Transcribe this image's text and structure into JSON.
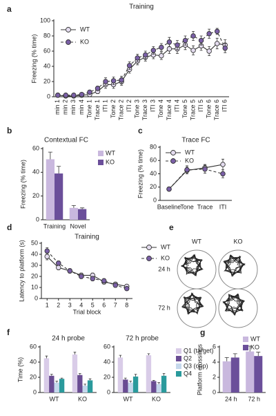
{
  "chart_data": [
    {
      "panel": "a",
      "type": "line",
      "title": "Training",
      "ylabel": "Freezing (% time)",
      "categories": [
        "min 1",
        "min 2",
        "min 3",
        "min 4",
        "Tone 1",
        "Trace 1",
        "ITI 1",
        "Tone 2",
        "Trace 2",
        "ITI 2",
        "Tone 3",
        "Trace 3",
        "ITI 3",
        "Tone 4",
        "Trace 4",
        "ITI 4",
        "Tone 5",
        "Trace 5",
        "ITI 5",
        "Tone 6",
        "Trace 6",
        "ITI 6"
      ],
      "ylim": [
        0,
        100
      ],
      "yticks": [
        0,
        20,
        40,
        60,
        80,
        100
      ],
      "series": [
        {
          "name": "WT",
          "color": "#e4dcef",
          "linestyle": "solid",
          "values": [
            2,
            1,
            1,
            2,
            3,
            7,
            16,
            16,
            20,
            36,
            47,
            52,
            55,
            54,
            63,
            63,
            68,
            61,
            67,
            60,
            70,
            68
          ],
          "errors": [
            1,
            1,
            1,
            1,
            2,
            3,
            5,
            5,
            5,
            5,
            5,
            5,
            5,
            5,
            6,
            6,
            6,
            6,
            6,
            6,
            7,
            7
          ]
        },
        {
          "name": "KO",
          "color": "#7a5fa6",
          "linestyle": "dashed",
          "values": [
            2,
            2,
            2,
            3,
            6,
            11,
            20,
            21,
            22,
            41,
            51,
            55,
            61,
            65,
            72,
            68,
            74,
            80,
            74,
            83,
            86,
            64
          ],
          "errors": [
            1,
            1,
            1,
            1,
            2,
            3,
            5,
            5,
            5,
            5,
            5,
            5,
            5,
            5,
            6,
            6,
            6,
            6,
            6,
            6,
            4,
            6
          ]
        }
      ]
    },
    {
      "panel": "b",
      "type": "bar",
      "title": "Contextual FC",
      "ylabel": "Freezing (% time)",
      "categories": [
        "Training",
        "Novel"
      ],
      "ylim": [
        0,
        60
      ],
      "yticks": [
        0,
        20,
        40,
        60
      ],
      "series": [
        {
          "name": "WT",
          "color": "#c9b8de",
          "values": [
            51,
            10
          ],
          "errors": [
            6,
            2
          ]
        },
        {
          "name": "KO",
          "color": "#6b4f9a",
          "values": [
            39,
            9
          ],
          "errors": [
            6,
            1
          ]
        }
      ]
    },
    {
      "panel": "c",
      "type": "line",
      "title": "Trace FC",
      "ylabel": "Freezing (% time)",
      "categories": [
        "Baseline",
        "Tone",
        "Trace",
        "ITI"
      ],
      "ylim": [
        0,
        80
      ],
      "yticks": [
        0,
        20,
        40,
        60,
        80
      ],
      "series": [
        {
          "name": "WT",
          "color": "#e4dcef",
          "linestyle": "solid",
          "values": [
            17,
            45,
            49,
            54
          ],
          "errors": [
            3,
            5,
            5,
            8
          ]
        },
        {
          "name": "KO",
          "color": "#7a5fa6",
          "linestyle": "dashed",
          "values": [
            17,
            46,
            47,
            40
          ],
          "errors": [
            3,
            6,
            6,
            6
          ]
        }
      ]
    },
    {
      "panel": "d",
      "type": "line",
      "title": "Training",
      "ylabel": "Latency to platform (s)",
      "xlabel": "Trial block",
      "x": [
        1,
        2,
        3,
        4,
        5,
        6,
        7,
        8
      ],
      "xlim": [
        0.5,
        8.5
      ],
      "xticks": [
        1,
        2,
        3,
        4,
        5,
        6,
        7,
        8
      ],
      "ylim": [
        0,
        50
      ],
      "yticks": [
        0,
        10,
        20,
        30,
        40,
        50
      ],
      "series": [
        {
          "name": "WT",
          "color": "#e4dcef",
          "linestyle": "solid",
          "values": [
            38,
            28,
            25,
            21,
            21,
            15,
            13,
            11
          ],
          "errors": [
            3,
            2,
            2,
            2,
            2,
            2,
            1,
            1
          ]
        },
        {
          "name": "KO",
          "color": "#7a5fa6",
          "linestyle": "dashed",
          "values": [
            43,
            32,
            25,
            20,
            18,
            16,
            12,
            9
          ],
          "errors": [
            3,
            2,
            2,
            2,
            2,
            2,
            1,
            1
          ]
        }
      ]
    },
    {
      "panel": "e",
      "type": "image",
      "columns": [
        "WT",
        "KO"
      ],
      "rows": [
        "24 h",
        "72 h"
      ]
    },
    {
      "panel": "f",
      "type": "bar",
      "title": "24 h probe",
      "ylabel": "Time (%)",
      "categories": [
        "WT",
        "KO"
      ],
      "ylim": [
        0,
        60
      ],
      "yticks": [
        0,
        20,
        40,
        60
      ],
      "series": [
        {
          "name": "Q1 (target)",
          "color": "#d9cce8",
          "values": [
            45,
            50
          ],
          "errors": [
            3,
            3
          ]
        },
        {
          "name": "Q2",
          "color": "#6a4c93",
          "values": [
            22,
            23
          ],
          "errors": [
            2,
            2
          ]
        },
        {
          "name": "Q3 (opp)",
          "color": "#c5d8ec",
          "values": [
            13,
            9
          ],
          "errors": [
            2,
            2
          ]
        },
        {
          "name": "Q4",
          "color": "#2a9a9c",
          "values": [
            18,
            16
          ],
          "errors": [
            1,
            2
          ]
        }
      ]
    },
    {
      "type": "bar",
      "title": "72 h probe",
      "categories": [
        "WT",
        "KO"
      ],
      "ylim": [
        0,
        60
      ],
      "yticks": [
        0,
        20,
        40,
        60
      ],
      "series": [
        {
          "name": "Q1 (target)",
          "color": "#d9cce8",
          "values": [
            46,
            49
          ],
          "errors": [
            3,
            2
          ]
        },
        {
          "name": "Q2",
          "color": "#6a4c93",
          "values": [
            17,
            15
          ],
          "errors": [
            2,
            1
          ]
        },
        {
          "name": "Q3 (opp)",
          "color": "#c5d8ec",
          "values": [
            13,
            11
          ],
          "errors": [
            2,
            2
          ]
        },
        {
          "name": "Q4",
          "color": "#2a9a9c",
          "values": [
            21,
            22
          ],
          "errors": [
            3,
            3
          ]
        }
      ]
    },
    {
      "panel": "g",
      "type": "bar",
      "ylabel": "Platform crossings",
      "categories": [
        "24 h",
        "72 h"
      ],
      "ylim": [
        0,
        6
      ],
      "yticks": [
        0,
        2,
        4,
        6
      ],
      "series": [
        {
          "name": "WT",
          "color": "#c9b8de",
          "values": [
            4.1,
            5.4
          ],
          "errors": [
            0.5,
            0.7
          ]
        },
        {
          "name": "KO",
          "color": "#6b4f9a",
          "values": [
            4.6,
            4.8
          ],
          "errors": [
            0.5,
            0.5
          ]
        }
      ]
    }
  ]
}
